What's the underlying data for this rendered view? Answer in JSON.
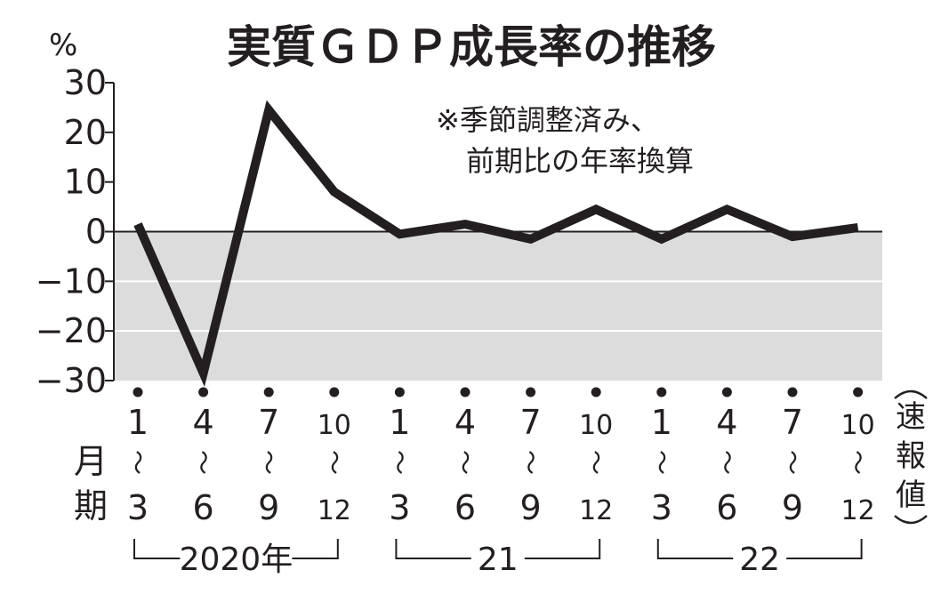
{
  "chart_data": {
    "type": "line",
    "title": "実質ＧＤＰ成長率の推移",
    "note_lines": [
      "※季節調整済み、",
      "前期比の年率換算"
    ],
    "ylabel": "%",
    "ylim": [
      -30,
      30
    ],
    "yticks": [
      {
        "value": 30,
        "label": "30"
      },
      {
        "value": 20,
        "label": "20"
      },
      {
        "value": 10,
        "label": "10"
      },
      {
        "value": 0,
        "label": "0"
      },
      {
        "value": -10,
        "label": "−10"
      },
      {
        "value": -20,
        "label": "−20"
      },
      {
        "value": -30,
        "label": "−30"
      }
    ],
    "grid": "horizontal lines in negative region",
    "negative_region_color": "#dcdcdc",
    "line_color": "#231f20",
    "month_label": [
      "月",
      "期"
    ],
    "categories": [
      {
        "start": "1",
        "end": "3"
      },
      {
        "start": "4",
        "end": "6"
      },
      {
        "start": "7",
        "end": "9"
      },
      {
        "start": "10",
        "end": "12"
      },
      {
        "start": "1",
        "end": "3"
      },
      {
        "start": "4",
        "end": "6"
      },
      {
        "start": "7",
        "end": "9"
      },
      {
        "start": "10",
        "end": "12"
      },
      {
        "start": "1",
        "end": "3"
      },
      {
        "start": "4",
        "end": "6"
      },
      {
        "start": "7",
        "end": "9"
      },
      {
        "start": "10",
        "end": "12"
      }
    ],
    "range_separator": "～",
    "year_groups": [
      {
        "label": "2020年",
        "from": 0,
        "to": 3
      },
      {
        "label": "21",
        "from": 4,
        "to": 7
      },
      {
        "label": "22",
        "from": 8,
        "to": 11
      }
    ],
    "last_point_note": [
      "速",
      "報",
      "値"
    ],
    "series": [
      {
        "values": [
          1.5,
          -28.5,
          24.5,
          8,
          -0.5,
          1.5,
          -1.5,
          4.5,
          -1.5,
          4.5,
          -1,
          0.8
        ]
      }
    ]
  }
}
